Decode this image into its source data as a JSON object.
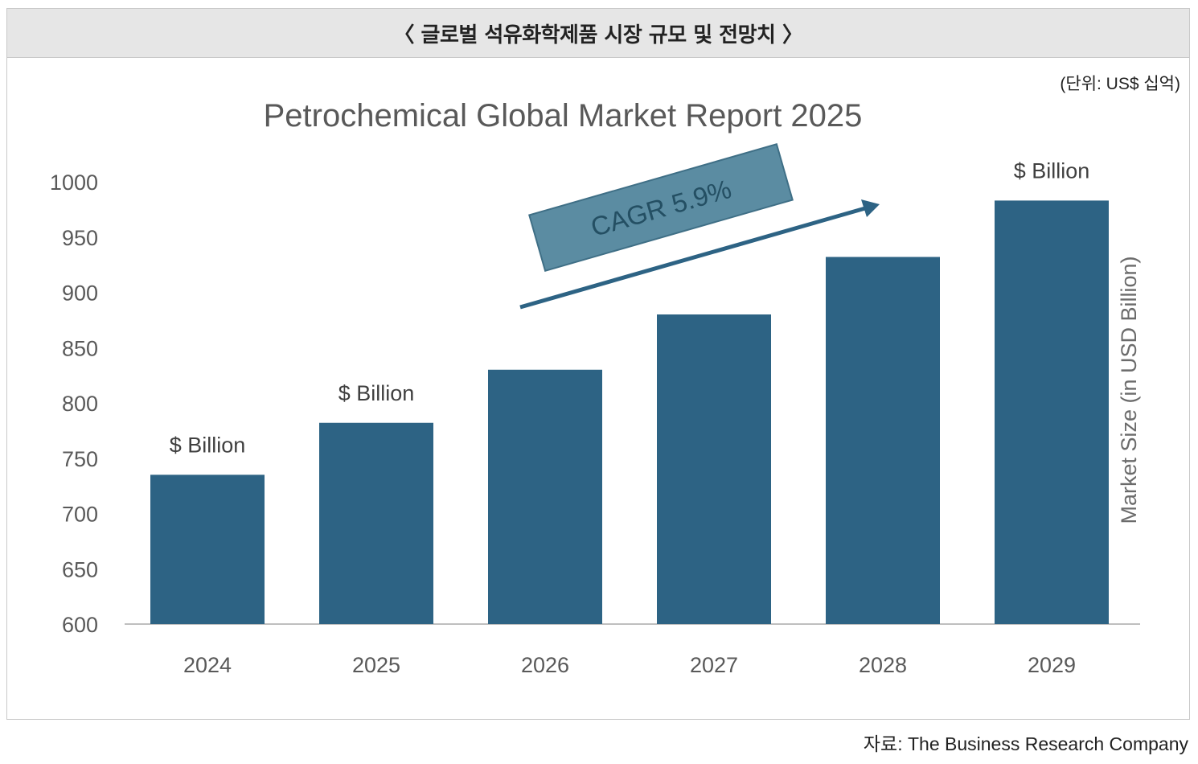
{
  "header": {
    "title": "〈 글로벌 석유화학제품 시장 규모 및 전망치 〉"
  },
  "unit_label": "(단위: US$ 십억)",
  "source": "자료: The Business Research Company",
  "colors": {
    "bar": "#2d6384",
    "axis": "#bfbfbf",
    "cagr_box": "#5b8ca2",
    "arrow": "#2d6384"
  },
  "chart_data": {
    "type": "bar",
    "title": "Petrochemical Global Market Report 2025",
    "xlabel": "",
    "ylabel": "Market Size (in USD Billion)",
    "categories": [
      "2024",
      "2025",
      "2026",
      "2027",
      "2028",
      "2029"
    ],
    "values": [
      735,
      782,
      830,
      880,
      932,
      983
    ],
    "ylim": [
      600,
      1000
    ],
    "yticks": [
      600,
      650,
      700,
      750,
      800,
      850,
      900,
      950,
      1000
    ],
    "data_labels": [
      "$ Billion",
      "$ Billion",
      "",
      "",
      "",
      "$ Billion"
    ],
    "annotation": "CAGR 5.9%",
    "grid": false
  }
}
